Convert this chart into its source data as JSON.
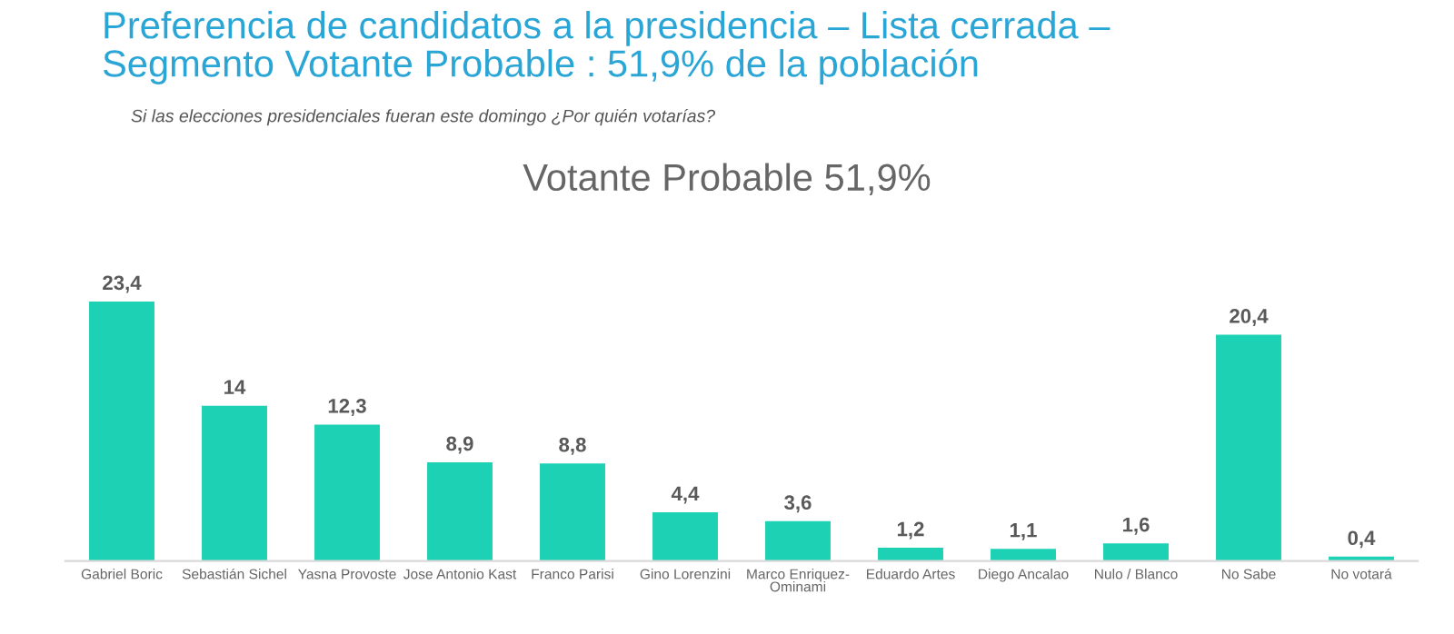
{
  "chart_data": {
    "type": "bar",
    "title": "Preferencia de candidatos a la presidencia – Lista cerrada –",
    "subtitle": "Segmento Votante Probable : 51,9% de la población",
    "annotations": [
      "Si las elecciones presidenciales fueran este domingo ¿Por quién votarías?",
      "Votante Probable 51,9%"
    ],
    "categories": [
      "Gabriel Boric",
      "Sebastián Sichel",
      "Yasna Provoste",
      "Jose Antonio Kast",
      "Franco Parisi",
      "Gino Lorenzini",
      "Marco Enriquez-\nOminami",
      "Eduardo Artes",
      "Diego Ancalao",
      "Nulo / Blanco",
      "No Sabe",
      "No votará"
    ],
    "values": [
      23.4,
      14,
      12.3,
      8.9,
      8.8,
      4.4,
      3.6,
      1.2,
      1.1,
      1.6,
      20.4,
      0.4
    ],
    "value_labels": [
      "23,4",
      "14",
      "12,3",
      "8,9",
      "8,8",
      "4,4",
      "3,6",
      "1,2",
      "1,1",
      "1,6",
      "20,4",
      "0,4"
    ],
    "color": "#1dd1b4",
    "grid": false,
    "legend": false
  }
}
